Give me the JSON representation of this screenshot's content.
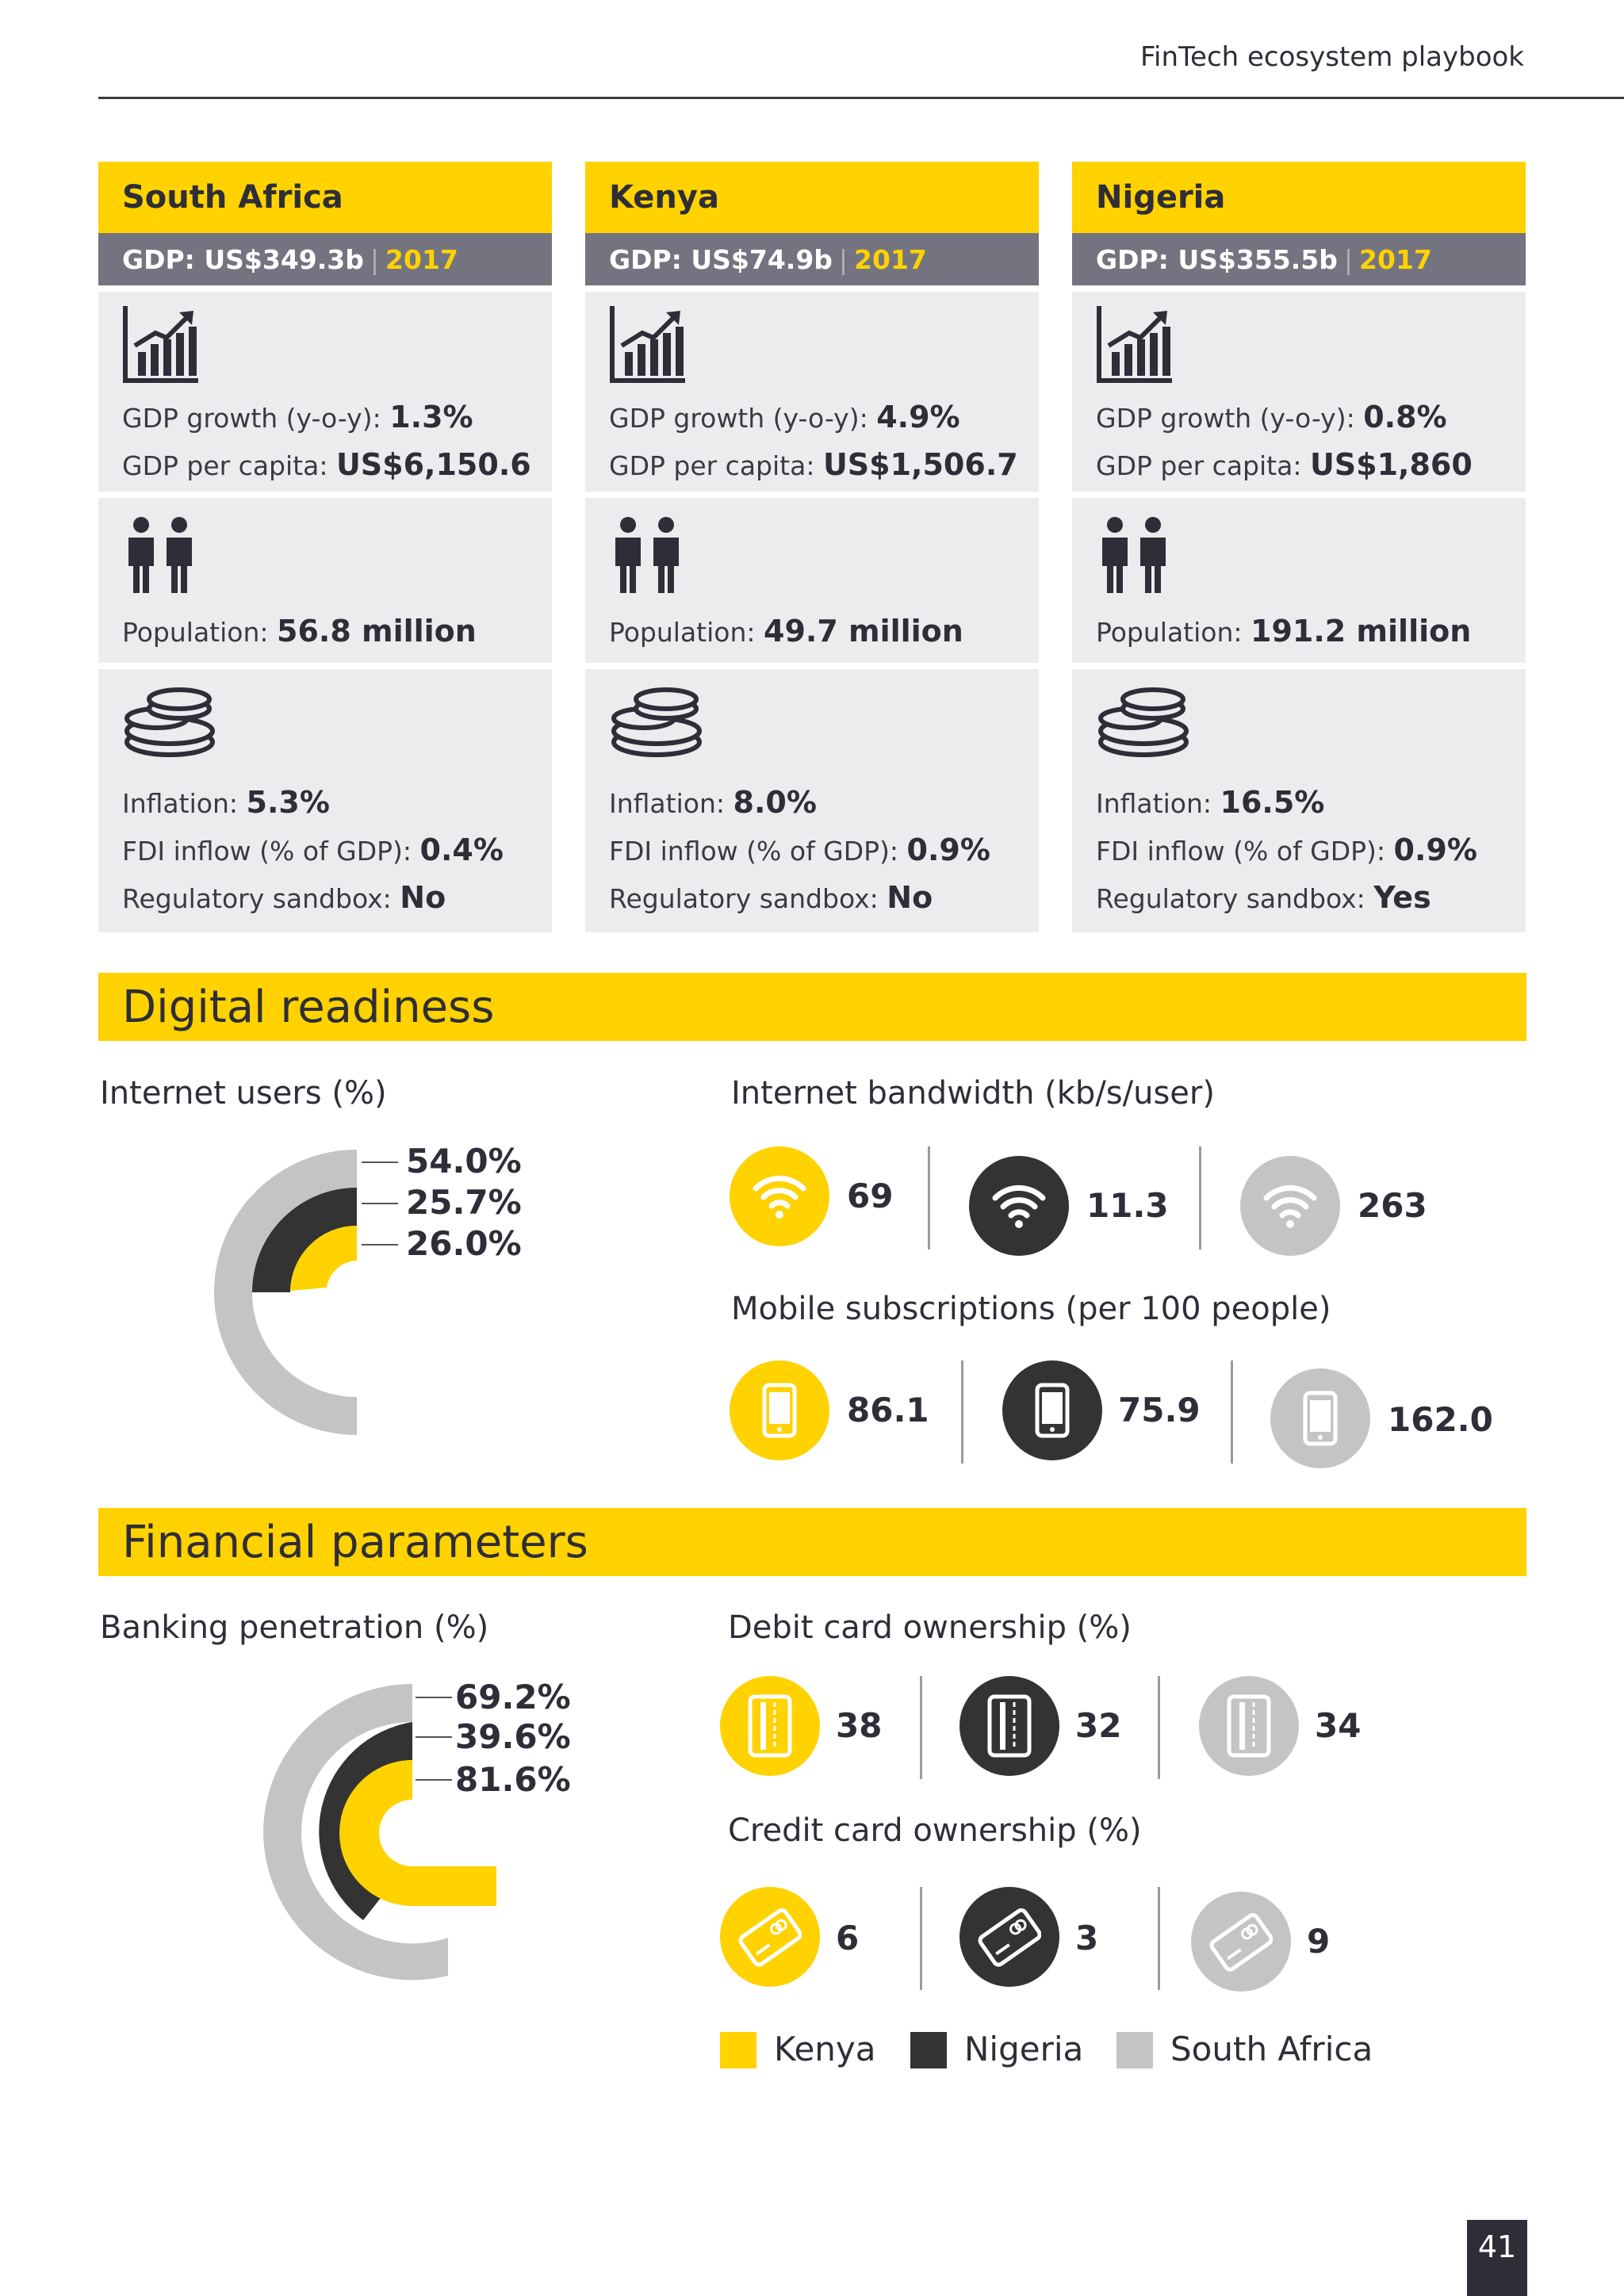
{
  "header": {
    "title": "FinTech ecosystem playbook"
  },
  "countries": [
    {
      "name": "South Africa",
      "gdp_label": "GDP: US$349.3b",
      "year": "2017",
      "gdp_growth_label": "GDP growth (y-o-y):",
      "gdp_growth": "1.3%",
      "gdp_per_capita_label": "GDP per capita:",
      "gdp_per_capita": "US$6,150.6",
      "population_label": "Population:",
      "population": "56.8 million",
      "inflation_label": "Inflation:",
      "inflation": "5.3%",
      "fdi_label": "FDI inflow (% of GDP):",
      "fdi": "0.4%",
      "sandbox_label": "Regulatory sandbox:",
      "sandbox": "No"
    },
    {
      "name": "Kenya",
      "gdp_label": "GDP: US$74.9b",
      "year": "2017",
      "gdp_growth_label": "GDP growth (y-o-y):",
      "gdp_growth": "4.9%",
      "gdp_per_capita_label": "GDP per capita:",
      "gdp_per_capita": "US$1,506.7",
      "population_label": "Population:",
      "population": "49.7 million",
      "inflation_label": "Inflation:",
      "inflation": "8.0%",
      "fdi_label": "FDI inflow (% of GDP):",
      "fdi": "0.9%",
      "sandbox_label": "Regulatory sandbox:",
      "sandbox": "No"
    },
    {
      "name": "Nigeria",
      "gdp_label": "GDP: US$355.5b",
      "year": "2017",
      "gdp_growth_label": "GDP growth (y-o-y):",
      "gdp_growth": "0.8%",
      "gdp_per_capita_label": "GDP per capita:",
      "gdp_per_capita": "US$1,860",
      "population_label": "Population:",
      "population": "191.2 million",
      "inflation_label": "Inflation:",
      "inflation": "16.5%",
      "fdi_label": "FDI inflow (% of GDP):",
      "fdi": "0.9%",
      "sandbox_label": "Regulatory sandbox:",
      "sandbox": "Yes"
    }
  ],
  "digital": {
    "title": "Digital readiness",
    "internet_users_title": "Internet users (%)",
    "internet_users_labels": [
      "54.0%",
      "25.7%",
      "26.0%"
    ],
    "bandwidth_title": "Internet bandwidth (kb/s/user)",
    "bandwidth_values": [
      "69",
      "11.3",
      "263"
    ],
    "mobile_title": "Mobile subscriptions (per 100 people)",
    "mobile_values": [
      "86.1",
      "75.9",
      "162.0"
    ]
  },
  "financial": {
    "title": "Financial parameters",
    "banking_title": "Banking penetration (%)",
    "banking_labels": [
      "69.2%",
      "39.6%",
      "81.6%"
    ],
    "debit_title": "Debit card ownership (%)",
    "debit_values": [
      "38",
      "32",
      "34"
    ],
    "credit_title": "Credit card ownership (%)",
    "credit_values": [
      "6",
      "3",
      "9"
    ]
  },
  "legend": [
    "Kenya",
    "Nigeria",
    "South Africa"
  ],
  "colors": {
    "kenya": "#ffd200",
    "nigeria": "#333333",
    "south_africa": "#c4c4c6"
  },
  "chart_data": [
    {
      "type": "pie",
      "title": "Internet users (%)",
      "categories": [
        "South Africa",
        "Nigeria",
        "Kenya"
      ],
      "values": [
        54.0,
        25.7,
        26.0
      ]
    },
    {
      "type": "pie",
      "title": "Banking penetration (%)",
      "categories": [
        "South Africa",
        "Nigeria",
        "Kenya"
      ],
      "values": [
        69.2,
        39.6,
        81.6
      ]
    }
  ],
  "footer": {
    "page_number": "41"
  }
}
